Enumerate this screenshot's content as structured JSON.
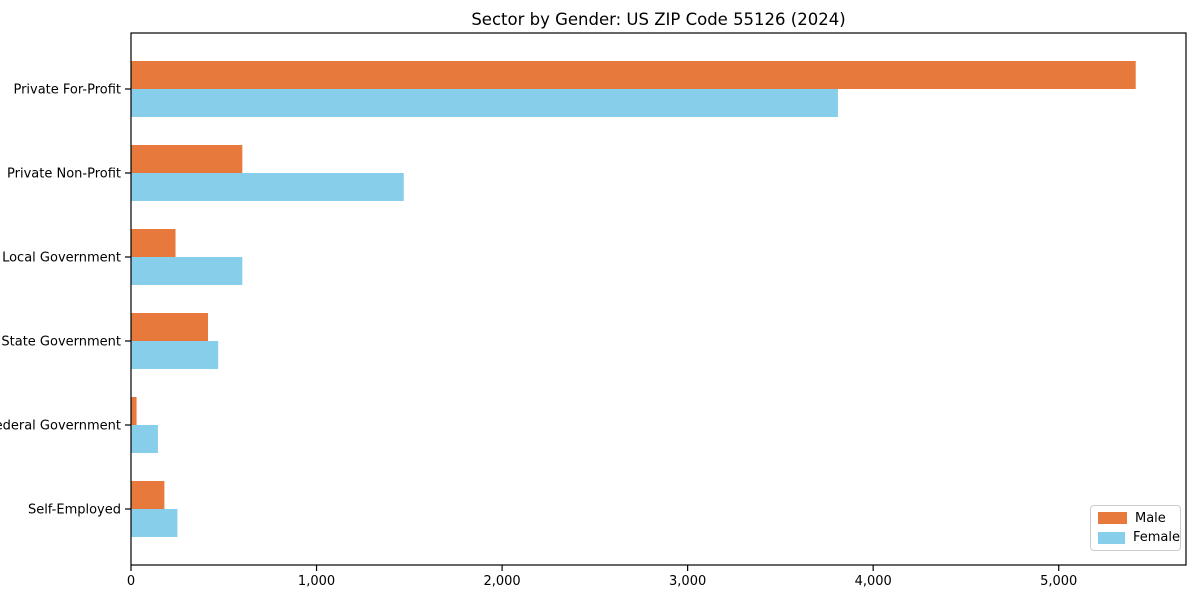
{
  "title": "Sector by Gender: US ZIP Code 55126 (2024)",
  "chart_data": {
    "type": "bar",
    "orientation": "horizontal",
    "title": "Sector by Gender: US ZIP Code 55126 (2024)",
    "categories": [
      "Private For-Profit",
      "Private Non-Profit",
      "Local Government",
      "State Government",
      "Federal Government",
      "Self-Employed"
    ],
    "series": [
      {
        "name": "Male",
        "color": "#e8793d",
        "values": [
          5415,
          600,
          240,
          415,
          30,
          180
        ]
      },
      {
        "name": "Female",
        "color": "#87ceeb",
        "values": [
          3810,
          1470,
          600,
          470,
          145,
          250
        ]
      }
    ],
    "xlabel": "",
    "ylabel": "",
    "xlim": [
      0,
      5686
    ],
    "x_ticks": [
      0,
      1000,
      2000,
      3000,
      4000,
      5000
    ],
    "x_tick_labels": [
      "0",
      "1,000",
      "2,000",
      "3,000",
      "4,000",
      "5,000"
    ],
    "grid": false,
    "legend_position": "lower right",
    "colors": {
      "male": "#e8793d",
      "female": "#87ceeb",
      "axis": "#000000",
      "legend_border": "#cccccc",
      "background": "#ffffff"
    }
  }
}
